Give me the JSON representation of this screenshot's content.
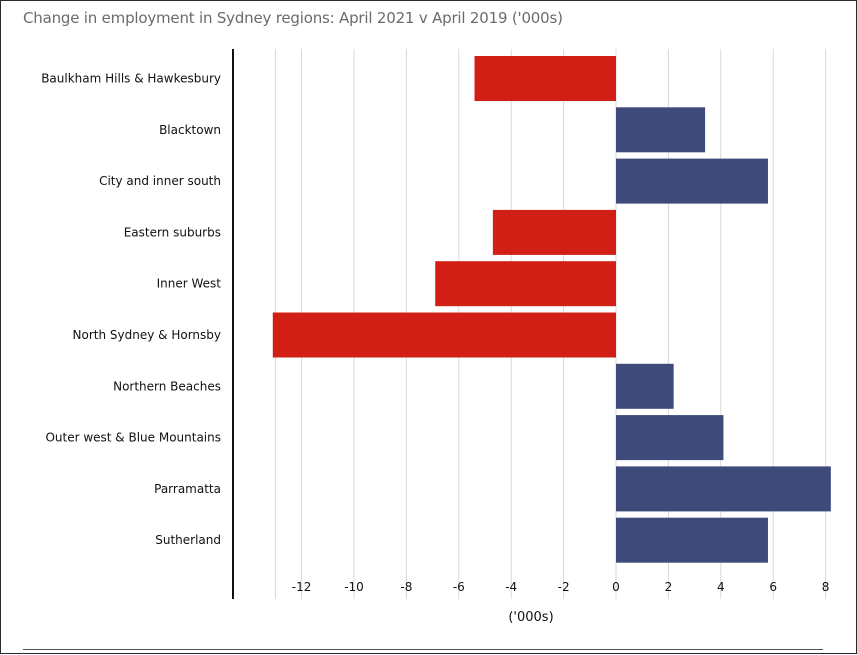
{
  "title": "Change in employment in Sydney regions: April 2021 v April 2019 ('000s)",
  "chart_data": {
    "type": "bar",
    "orientation": "horizontal",
    "categories": [
      "Baulkham Hills & Hawkesbury",
      "Blacktown",
      "City and inner south",
      "Eastern suburbs",
      "Inner West",
      "North Sydney & Hornsby",
      "Northern Beaches",
      "Outer west & Blue Mountains",
      "Parramatta",
      "Sutherland"
    ],
    "values": [
      -5.4,
      3.4,
      5.8,
      -4.7,
      -6.9,
      -13.1,
      2.2,
      4.1,
      8.2,
      5.8
    ],
    "xlabel": "('000s)",
    "xlim": [
      -14,
      8.4
    ],
    "xticks": [
      -12,
      -10,
      -8,
      -6,
      -4,
      -2,
      0,
      2,
      4,
      6,
      8
    ],
    "xtick_labels": [
      "-12",
      "-10",
      "-8",
      "-6",
      "-4",
      "-2",
      "0",
      "2",
      "4",
      "6",
      "8"
    ],
    "grid": true,
    "colors": {
      "negative": "#d21f16",
      "positive": "#3d4a7a",
      "grid": "#d9d9d9"
    }
  }
}
